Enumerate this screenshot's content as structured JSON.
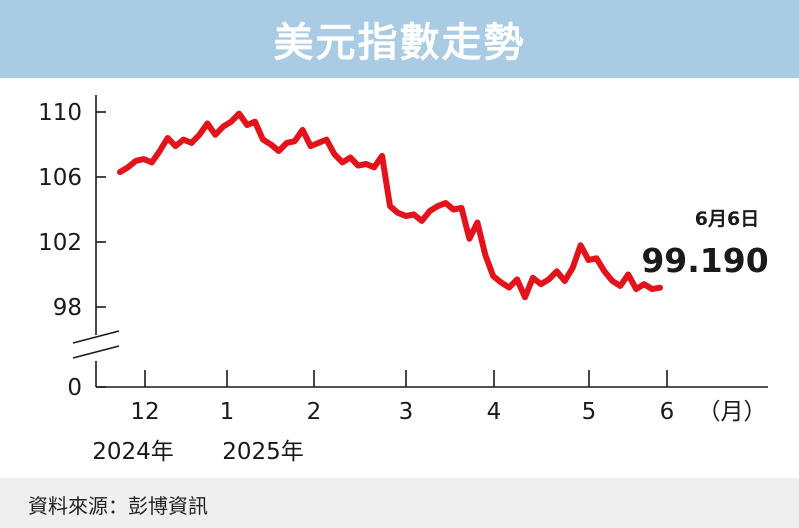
{
  "title": "美元指數走勢",
  "source": "資料來源：彭博資訊",
  "chart_data": {
    "type": "line",
    "title": "美元指數走勢",
    "xlabel": "",
    "ylabel": "",
    "y_ticks": [
      "110",
      "106",
      "102",
      "98",
      "0"
    ],
    "x_ticks": [
      "12",
      "1",
      "2",
      "3",
      "4",
      "5",
      "6"
    ],
    "x_unit": "（月）",
    "year_labels": [
      "2024年",
      "2025年"
    ],
    "axis_break": true,
    "grid": false,
    "line_color": "#e3121b",
    "annotation": {
      "date": "6月6日",
      "value": "99.190"
    },
    "series": [
      {
        "values": [
          106.3,
          106.6,
          107.0,
          107.1,
          106.9,
          107.6,
          108.4,
          107.9,
          108.3,
          108.1,
          108.6,
          109.3,
          108.6,
          109.1,
          109.4,
          109.9,
          109.2,
          109.4,
          108.3,
          108.0,
          107.6,
          108.1,
          108.2,
          108.9,
          107.9,
          108.1,
          108.3,
          107.4,
          106.9,
          107.2,
          106.7,
          106.8,
          106.6,
          107.3,
          104.2,
          103.8,
          103.6,
          103.7,
          103.3,
          103.9,
          104.2,
          104.4,
          104.0,
          104.1,
          102.2,
          103.2,
          101.2,
          99.9,
          99.5,
          99.2,
          99.7,
          98.6,
          99.8,
          99.4,
          99.7,
          100.2,
          99.6,
          100.4,
          101.8,
          100.9,
          101.0,
          100.2,
          99.6,
          99.3,
          100.0,
          99.1,
          99.4,
          99.1,
          99.19
        ]
      }
    ]
  }
}
